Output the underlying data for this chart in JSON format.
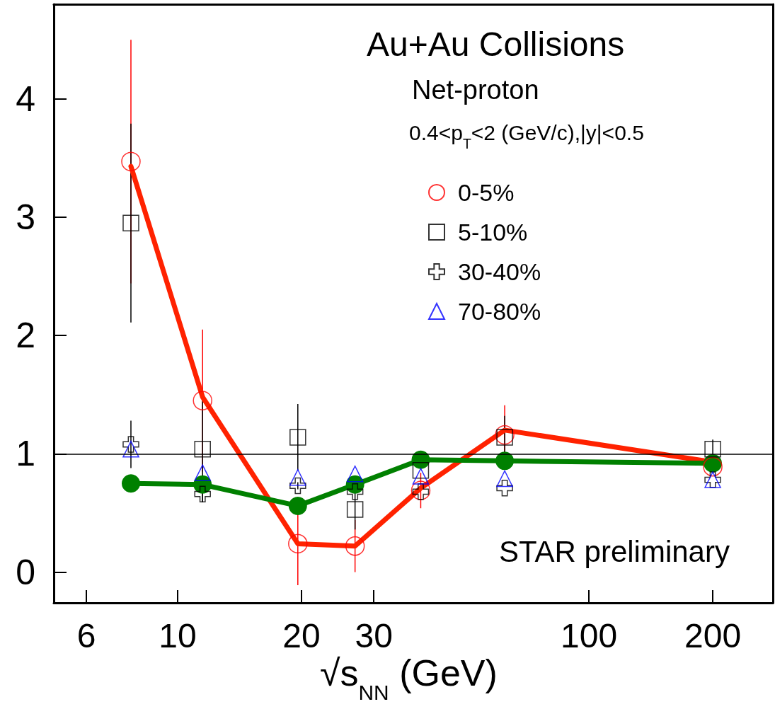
{
  "chart_data": {
    "type": "scatter",
    "title": "Au+Au Collisions",
    "subtitle": "Net-proton",
    "xlabel": "√s$_{NN}$ (GeV)",
    "annotations": [
      "0.4<p$_{T}$<2 (GeV/c),|y|<0.5",
      "STAR preliminary"
    ],
    "x": [
      7.7,
      11.5,
      19.6,
      27,
      39,
      62.4,
      200
    ],
    "log": "x",
    "xlim": [
      5,
      280
    ],
    "xticks": [
      6,
      10,
      20,
      30,
      100,
      200
    ],
    "ylim": [
      -0.26,
      4.8
    ],
    "yticks": [
      0,
      1,
      2,
      3,
      4
    ],
    "grid": false,
    "legend": "top right",
    "ref_lines": [
      {
        "axis": "y",
        "value": 1,
        "color": "#000000"
      }
    ],
    "series": [
      {
        "type": "line",
        "color": "#ff2200",
        "marker": "none",
        "values": [
          3.43,
          1.48,
          0.24,
          0.22,
          0.71,
          1.2,
          0.93
        ]
      },
      {
        "type": "line",
        "color": "#008000",
        "marker": "circle",
        "values": [
          0.75,
          0.74,
          0.56,
          0.74,
          0.95,
          0.94,
          0.92
        ]
      },
      {
        "name": "0-5%",
        "marker": "circle",
        "color": "#ff0000",
        "values": [
          3.47,
          1.45,
          0.24,
          0.22,
          0.69,
          1.16,
          0.89
        ],
        "errors": [
          1.03,
          0.6,
          0.35,
          0.22,
          0.15,
          0.25,
          null
        ]
      },
      {
        "name": "5-10%",
        "marker": "square",
        "color": "#000000",
        "values": [
          2.95,
          1.04,
          1.14,
          0.53,
          0.86,
          1.14,
          1.04
        ],
        "errors": [
          0.84,
          0.45,
          0.28,
          0.17,
          null,
          0.18,
          0.08
        ]
      },
      {
        "name": "30-40%",
        "marker": "cross",
        "color": "#000000",
        "values": [
          1.08,
          0.66,
          0.73,
          0.68,
          0.68,
          0.71,
          0.78
        ],
        "errors": [
          0.2,
          0.07,
          0.03,
          null,
          null,
          null,
          null
        ]
      },
      {
        "name": "70-80%",
        "marker": "triangle",
        "color": "#0000ff",
        "values": [
          1.04,
          0.84,
          0.8,
          0.83,
          0.81,
          0.79,
          0.78
        ]
      }
    ]
  }
}
